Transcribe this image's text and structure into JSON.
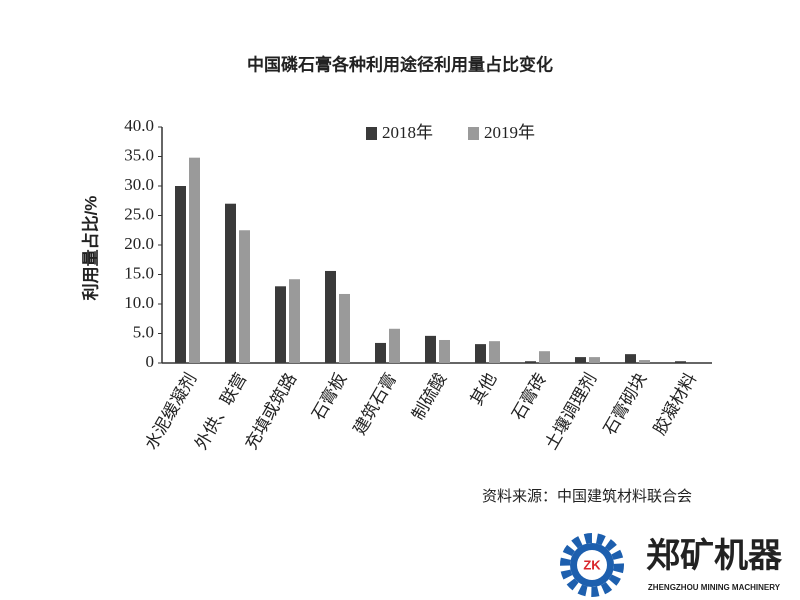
{
  "chart_data": {
    "type": "bar",
    "title": "中国磷石膏各种利用途径利用量占比变化",
    "y_label": "利用量占比/%",
    "categories": [
      "水泥缓凝剂",
      "外供、联营",
      "充填或筑路",
      "石膏板",
      "建筑石膏",
      "制硫酸",
      "其他",
      "石膏砖",
      "土壤调理剂",
      "石膏砌块",
      "胶凝材料"
    ],
    "series": [
      {
        "name": "2018年",
        "color": "#3a3a3a",
        "values": [
          30.0,
          27.0,
          13.0,
          15.6,
          3.4,
          4.6,
          3.2,
          0.3,
          1.0,
          1.5,
          0.3
        ]
      },
      {
        "name": "2019年",
        "color": "#9a9a9a",
        "values": [
          34.8,
          22.5,
          14.2,
          11.7,
          5.8,
          3.9,
          3.7,
          2.0,
          1.0,
          0.5,
          0
        ]
      }
    ],
    "ylim": [
      0,
      40
    ],
    "yticks": [
      0,
      {
        "value": 5,
        "label": "5.0"
      },
      {
        "value": 10,
        "label": "10.0"
      },
      {
        "value": 15,
        "label": "15.0"
      },
      {
        "value": 20,
        "label": "20.0"
      },
      {
        "value": 25,
        "label": "25.0"
      },
      {
        "value": 30,
        "label": "30.0"
      },
      {
        "value": 35,
        "label": "35.0"
      },
      {
        "value": 40,
        "label": "40.0"
      }
    ],
    "grid": false,
    "legend": "top"
  },
  "source": "资料来源：中国建筑材料联合会",
  "logo": {
    "mark": "ZK",
    "name": "郑矿机器",
    "subtitle": "ZHENGZHOU MINING MACHINERY"
  }
}
